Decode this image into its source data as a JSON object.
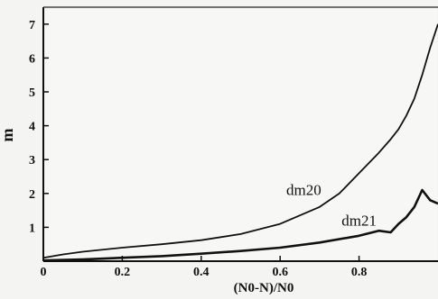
{
  "chart_data": {
    "type": "line",
    "xlabel": "(N0-N)/N0",
    "ylabel": "m",
    "xlim": [
      0,
      1.0
    ],
    "ylim": [
      0,
      7.5
    ],
    "x_ticks": [
      "0",
      "0.2",
      "0.4",
      "0.6",
      "0.8"
    ],
    "x_tick_values": [
      0,
      0.2,
      0.4,
      0.6,
      0.8
    ],
    "y_ticks": [
      "1",
      "2",
      "3",
      "4",
      "5",
      "6",
      "7"
    ],
    "y_tick_values": [
      1,
      2,
      3,
      4,
      5,
      6,
      7
    ],
    "grid": false,
    "legend": "none",
    "series": [
      {
        "name": "dm20",
        "color": "#111111",
        "x": [
          0,
          0.05,
          0.1,
          0.2,
          0.3,
          0.4,
          0.5,
          0.6,
          0.7,
          0.75,
          0.8,
          0.85,
          0.88,
          0.9,
          0.92,
          0.94,
          0.96,
          0.98,
          1.0
        ],
        "y": [
          0.1,
          0.2,
          0.28,
          0.4,
          0.5,
          0.62,
          0.8,
          1.1,
          1.6,
          2.0,
          2.6,
          3.2,
          3.6,
          3.9,
          4.3,
          4.8,
          5.5,
          6.3,
          7.0
        ]
      },
      {
        "name": "dm21",
        "color": "#111111",
        "x": [
          0,
          0.1,
          0.2,
          0.3,
          0.4,
          0.5,
          0.6,
          0.7,
          0.8,
          0.85,
          0.88,
          0.9,
          0.92,
          0.94,
          0.96,
          0.98,
          1.0
        ],
        "y": [
          0.02,
          0.05,
          0.1,
          0.15,
          0.22,
          0.3,
          0.4,
          0.55,
          0.75,
          0.9,
          0.85,
          1.1,
          1.3,
          1.6,
          2.1,
          1.8,
          1.7
        ]
      }
    ],
    "annotations": [
      {
        "text": "dm20",
        "x": 0.66,
        "y": 1.95
      },
      {
        "text": "dm21",
        "x": 0.8,
        "y": 1.05
      }
    ]
  }
}
